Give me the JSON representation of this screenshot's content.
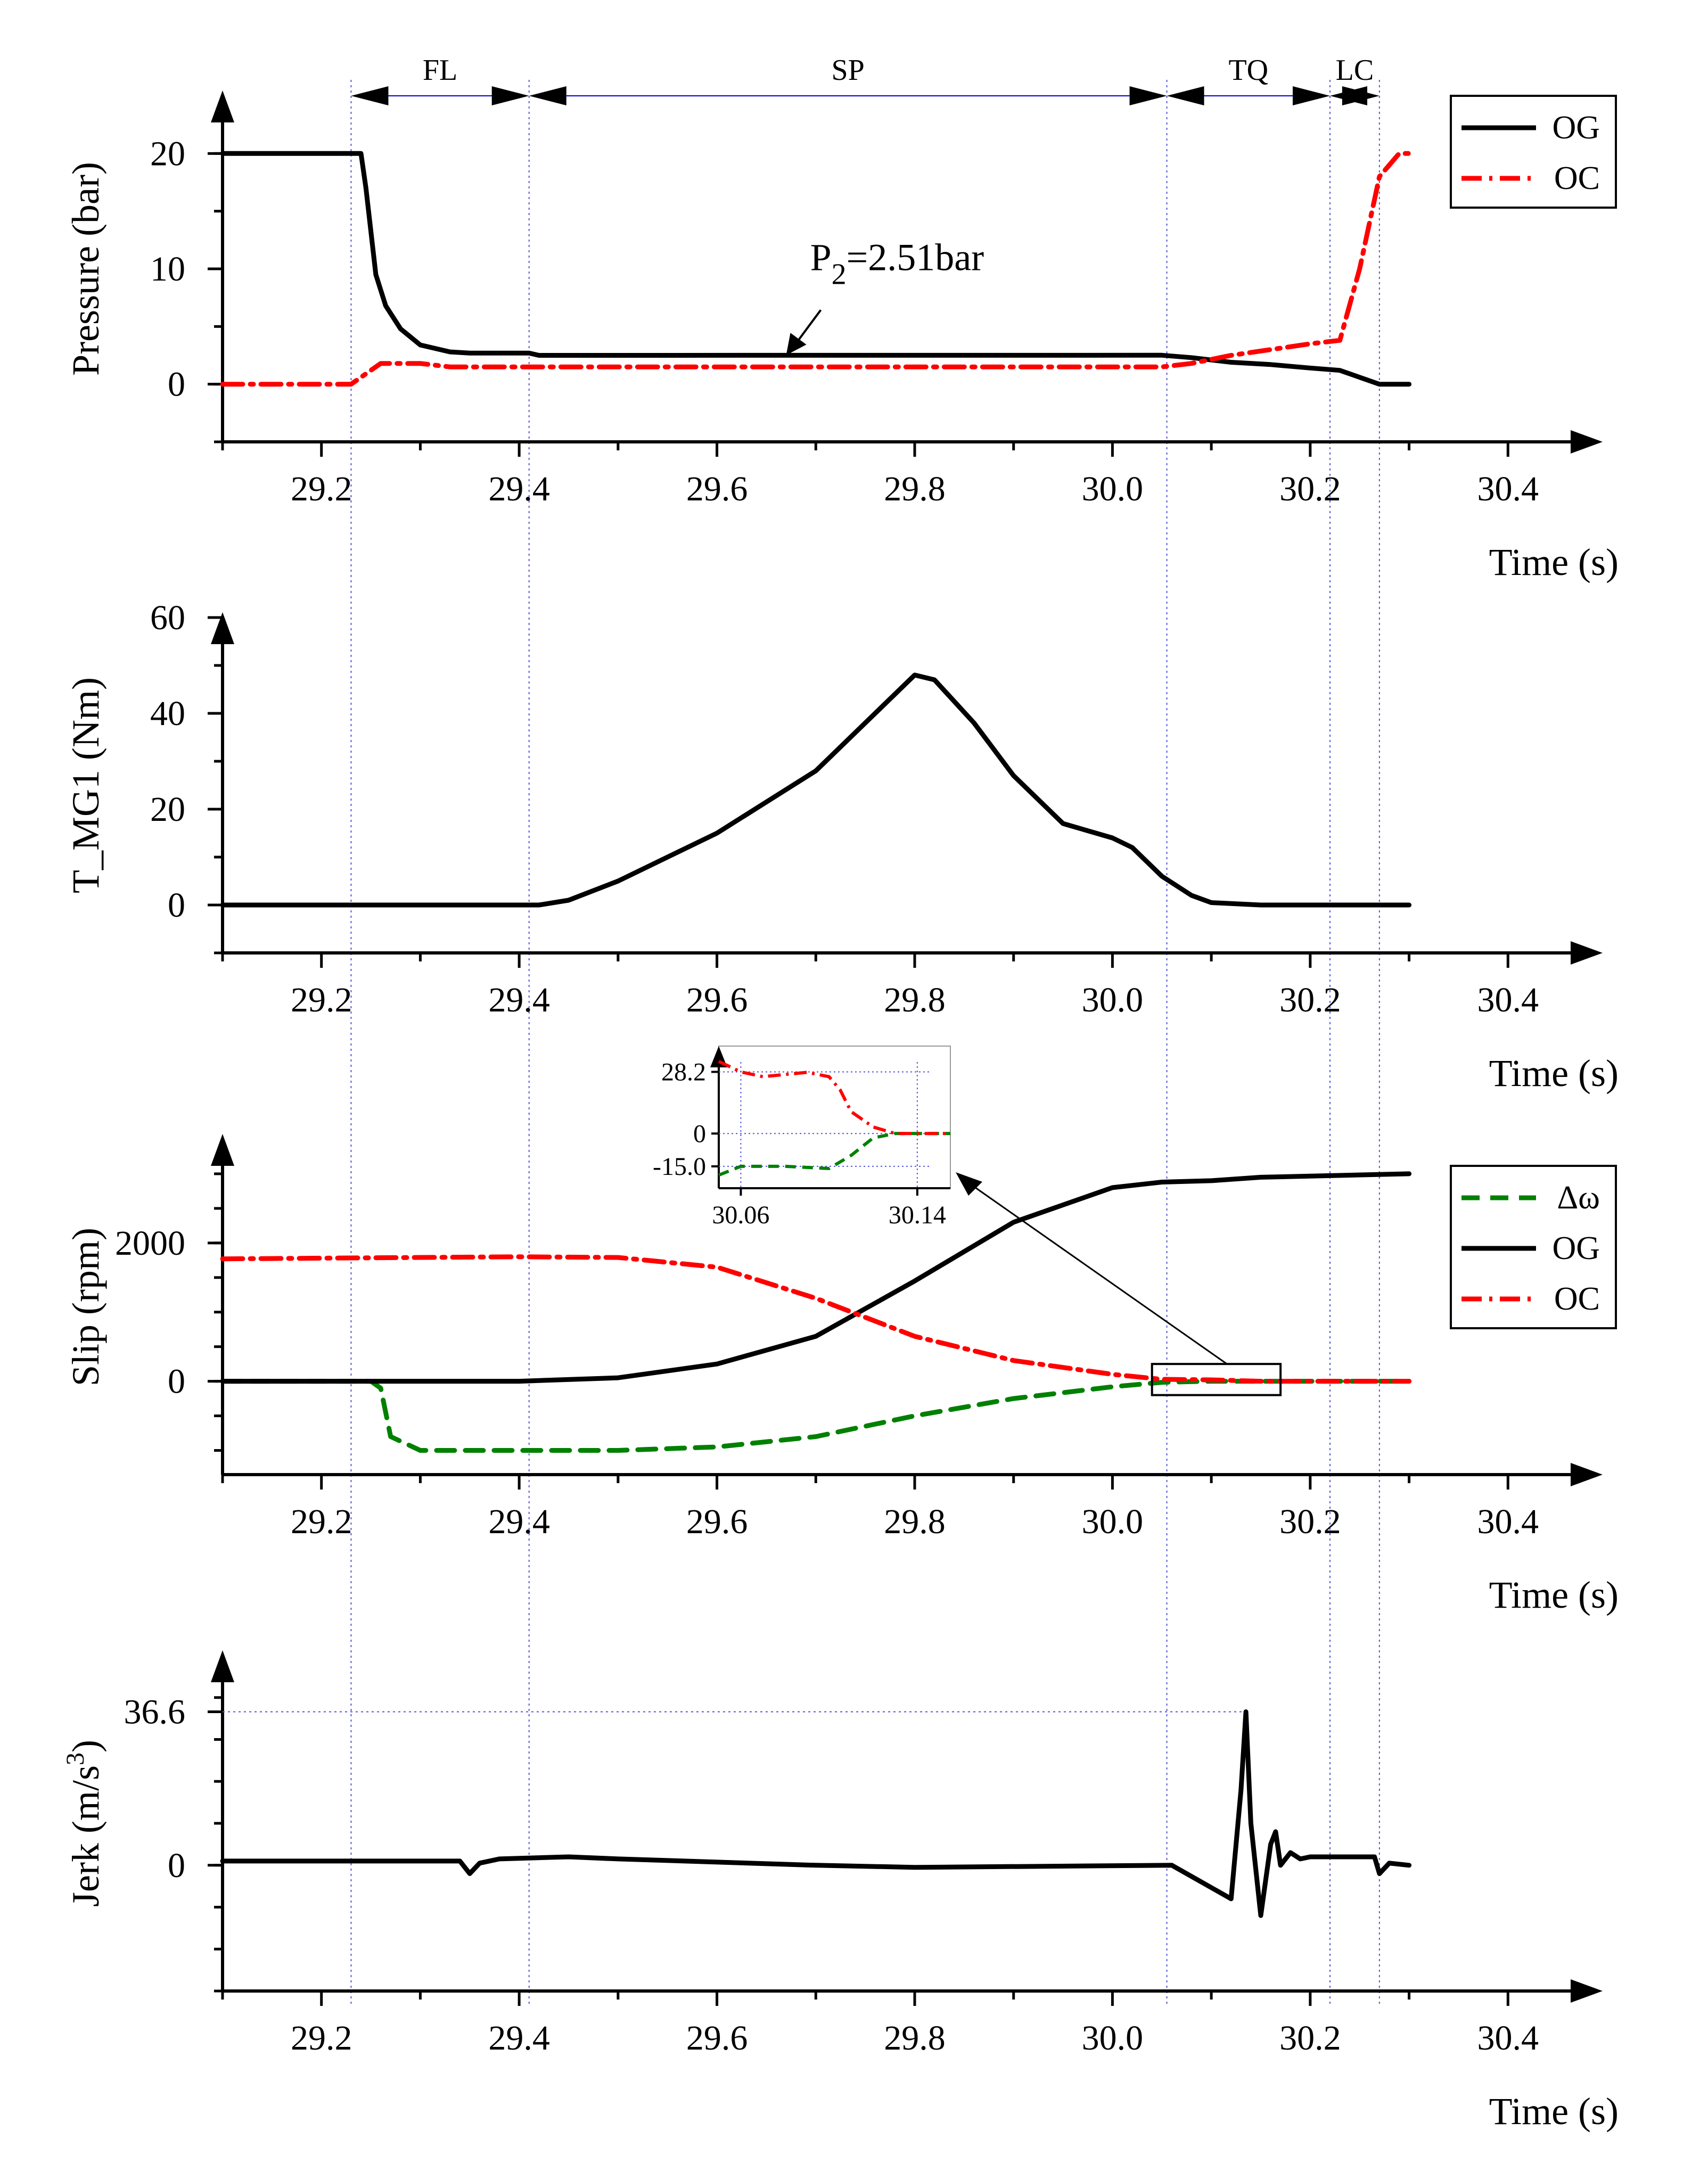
{
  "chart_data": [
    {
      "id": "pressure",
      "type": "line",
      "ylabel": "Pressure (bar)",
      "xlabel": "Time (s)",
      "xlim": [
        29.1,
        30.5
      ],
      "ylim": [
        -5,
        25
      ],
      "x_ticks": [
        "29.2",
        "29.4",
        "29.6",
        "29.8",
        "30.0",
        "30.2",
        "30.4"
      ],
      "y_ticks": [
        "0",
        "10",
        "20"
      ],
      "phases": [
        {
          "label": "FL",
          "start": 29.23,
          "end": 29.41
        },
        {
          "label": "SP",
          "start": 29.41,
          "end": 30.055
        },
        {
          "label": "TQ",
          "start": 30.055,
          "end": 30.22
        },
        {
          "label": "LC",
          "start": 30.22,
          "end": 30.27
        }
      ],
      "annotation": {
        "label": "P",
        "sub": "2",
        "suffix": "=2.51bar",
        "x": 29.67,
        "y": 2.51
      },
      "legend": [
        {
          "name": "OG",
          "color": "#000000",
          "style": "solid"
        },
        {
          "name": "OC",
          "color": "#ff0000",
          "style": "dashdot"
        }
      ],
      "series": [
        {
          "name": "OG",
          "color": "#000000",
          "style": "solid",
          "x": [
            29.1,
            29.24,
            29.245,
            29.255,
            29.265,
            29.28,
            29.3,
            29.33,
            29.35,
            29.41,
            29.42,
            30.05,
            30.08,
            30.12,
            30.16,
            30.2,
            30.23,
            30.25,
            30.27,
            30.3
          ],
          "y": [
            20,
            20,
            17,
            9.5,
            6.8,
            4.8,
            3.4,
            2.8,
            2.7,
            2.7,
            2.5,
            2.51,
            2.3,
            1.9,
            1.7,
            1.4,
            1.2,
            0.6,
            0,
            0
          ]
        },
        {
          "name": "OC",
          "color": "#ff0000",
          "style": "dashdot",
          "x": [
            29.1,
            29.23,
            29.26,
            29.3,
            29.33,
            30.05,
            30.08,
            30.12,
            30.16,
            30.2,
            30.23,
            30.25,
            30.27,
            30.29,
            30.3
          ],
          "y": [
            0,
            0,
            1.8,
            1.8,
            1.5,
            1.5,
            1.8,
            2.5,
            3.0,
            3.5,
            3.8,
            10,
            18,
            20,
            20
          ]
        }
      ]
    },
    {
      "id": "torque",
      "type": "line",
      "ylabel": "T_MG1 (Nm)",
      "xlabel": "Time (s)",
      "xlim": [
        29.1,
        30.5
      ],
      "ylim": [
        -10,
        60
      ],
      "x_ticks": [
        "29.2",
        "29.4",
        "29.6",
        "29.8",
        "30.0",
        "30.2",
        "30.4"
      ],
      "y_ticks": [
        "0",
        "20",
        "40",
        "60"
      ],
      "series": [
        {
          "name": "T_MG1",
          "color": "#000000",
          "style": "solid",
          "x": [
            29.1,
            29.42,
            29.45,
            29.5,
            29.6,
            29.7,
            29.76,
            29.79,
            29.8,
            29.82,
            29.86,
            29.9,
            29.95,
            30.0,
            30.02,
            30.05,
            30.08,
            30.1,
            30.15,
            30.3
          ],
          "y": [
            0,
            0,
            1,
            5,
            15,
            28,
            40,
            46,
            48,
            47,
            38,
            27,
            17,
            14,
            12,
            6,
            2,
            0.5,
            0,
            0
          ]
        }
      ]
    },
    {
      "id": "slip",
      "type": "line",
      "ylabel": "Slip (rpm)",
      "xlabel": "Time (s)",
      "xlim": [
        29.1,
        30.5
      ],
      "ylim": [
        -1350,
        3500
      ],
      "x_ticks": [
        "29.2",
        "29.4",
        "29.6",
        "29.8",
        "30.0",
        "30.2",
        "30.4"
      ],
      "y_ticks": [
        "0",
        "2000"
      ],
      "legend": [
        {
          "name": "Δω",
          "color": "#008000",
          "style": "dashed"
        },
        {
          "name": "OG",
          "color": "#000000",
          "style": "solid"
        },
        {
          "name": "OC",
          "color": "#ff0000",
          "style": "dashdot"
        }
      ],
      "series": [
        {
          "name": "Δω",
          "color": "#008000",
          "style": "dashed",
          "x": [
            29.1,
            29.25,
            29.26,
            29.27,
            29.3,
            29.5,
            29.6,
            29.7,
            29.8,
            29.9,
            30.0,
            30.05,
            30.1,
            30.3
          ],
          "y": [
            0,
            0,
            -100,
            -800,
            -1000,
            -1000,
            -950,
            -800,
            -500,
            -250,
            -80,
            -15,
            0,
            0
          ]
        },
        {
          "name": "OG",
          "color": "#000000",
          "style": "solid",
          "x": [
            29.1,
            29.4,
            29.5,
            29.6,
            29.7,
            29.8,
            29.9,
            30.0,
            30.05,
            30.1,
            30.15,
            30.3
          ],
          "y": [
            0,
            0,
            50,
            250,
            650,
            1450,
            2300,
            2800,
            2880,
            2900,
            2950,
            3000
          ]
        },
        {
          "name": "OC",
          "color": "#ff0000",
          "style": "dashdot",
          "x": [
            29.1,
            29.4,
            29.5,
            29.6,
            29.7,
            29.8,
            29.9,
            30.0,
            30.05,
            30.1,
            30.15,
            30.3
          ],
          "y": [
            1770,
            1800,
            1790,
            1650,
            1200,
            650,
            300,
            100,
            28,
            20,
            0,
            0
          ]
        }
      ],
      "zoom_box": {
        "x0": 30.04,
        "x1": 30.17,
        "y0": -200,
        "y1": 250
      },
      "inset": {
        "xlim": [
          30.05,
          30.155
        ],
        "ylim": [
          -25,
          40
        ],
        "x_ticks": [
          "30.06",
          "30.14"
        ],
        "y_ticks": [
          "-15.0",
          "0",
          "28.2"
        ],
        "series": [
          {
            "name": "Δω",
            "color": "#008000",
            "style": "dashed",
            "x": [
              30.05,
              30.06,
              30.08,
              30.1,
              30.11,
              30.12,
              30.13,
              30.155
            ],
            "y": [
              -19,
              -15,
              -15,
              -16,
              -10,
              -2,
              0,
              0
            ]
          },
          {
            "name": "OC",
            "color": "#ff0000",
            "style": "dashdot",
            "x": [
              30.05,
              30.06,
              30.07,
              30.08,
              30.09,
              30.1,
              30.105,
              30.11,
              30.12,
              30.13,
              30.155
            ],
            "y": [
              33,
              28.2,
              26,
              27,
              28,
              26,
              20,
              10,
              3,
              0,
              0
            ]
          }
        ]
      }
    },
    {
      "id": "jerk",
      "type": "line",
      "ylabel": "Jerk (m/s",
      "ylabel_sup": "3",
      "ylabel_suffix": ")",
      "xlabel": "Time (s)",
      "xlim": [
        29.1,
        30.5
      ],
      "ylim": [
        -30,
        50
      ],
      "x_ticks": [
        "29.2",
        "29.4",
        "29.6",
        "29.8",
        "30.0",
        "30.2",
        "30.4"
      ],
      "y_ticks": [
        "0",
        "36.6"
      ],
      "series": [
        {
          "name": "Jerk",
          "color": "#000000",
          "style": "solid",
          "x": [
            29.1,
            29.34,
            29.35,
            29.36,
            29.38,
            29.45,
            29.5,
            29.7,
            29.8,
            30.06,
            30.09,
            30.12,
            30.13,
            30.135,
            30.14,
            30.15,
            30.16,
            30.165,
            30.17,
            30.18,
            30.19,
            30.2,
            30.265,
            30.27,
            30.28,
            30.3
          ],
          "y": [
            1,
            1,
            -2,
            0.5,
            1.5,
            2,
            1.5,
            0,
            -0.5,
            0,
            -4,
            -8,
            18,
            36.6,
            10,
            -12,
            5,
            8,
            0,
            3,
            1.5,
            2,
            2,
            -2,
            0.5,
            0
          ]
        }
      ]
    }
  ]
}
